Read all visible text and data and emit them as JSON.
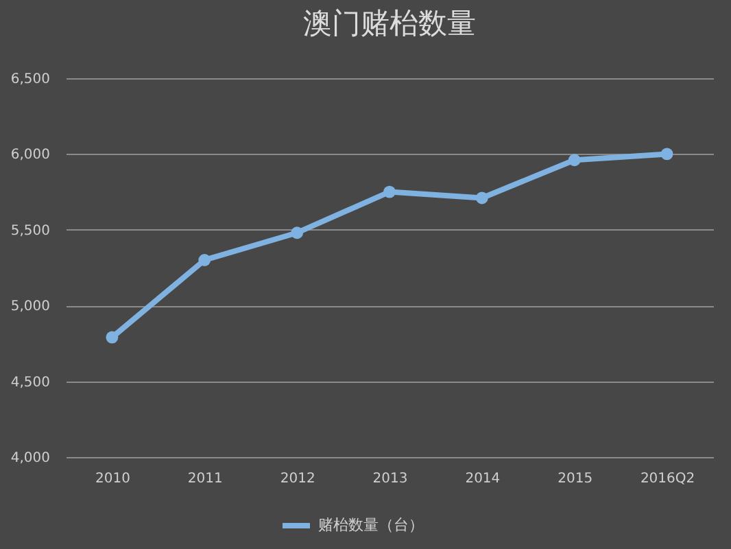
{
  "chart_data": {
    "type": "line",
    "title": "澳门赌枱数量",
    "categories": [
      "2010",
      "2011",
      "2012",
      "2013",
      "2014",
      "2015",
      "2016Q2"
    ],
    "series": [
      {
        "name": "赌枱数量（台）",
        "color": "#7fb2e0",
        "values": [
          4790,
          5300,
          5480,
          5750,
          5710,
          5960,
          6000
        ]
      }
    ],
    "ylim": [
      4000,
      6500
    ],
    "yticks": [
      {
        "value": 4000,
        "label": "4,000"
      },
      {
        "value": 4500,
        "label": "4,500"
      },
      {
        "value": 5000,
        "label": "5,000"
      },
      {
        "value": 5500,
        "label": "5,500"
      },
      {
        "value": 6000,
        "label": "6,000"
      },
      {
        "value": 6500,
        "label": "6,500"
      }
    ],
    "grid": "y",
    "legend": "bottom",
    "marker": "circle",
    "line_style": "solid"
  }
}
